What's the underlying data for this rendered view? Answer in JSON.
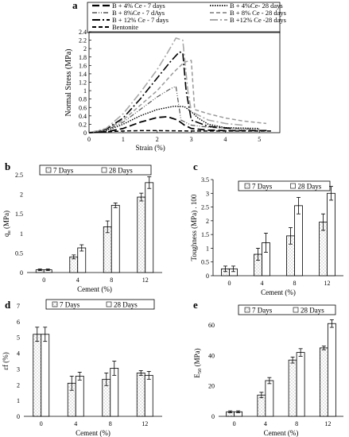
{
  "chart_data": [
    {
      "panel": "a",
      "type": "line",
      "xlabel": "Strain (%)",
      "ylabel": "Normal Stress (MPa)",
      "xlim": [
        0,
        5.6
      ],
      "ylim": [
        0,
        2.4
      ],
      "xticks": [
        0,
        1,
        2,
        3,
        4,
        5
      ],
      "yticks": [
        0,
        0.2,
        0.4,
        0.6,
        0.8,
        1.0,
        1.2,
        1.4,
        1.6,
        1.8,
        2.0,
        2.2,
        2.4
      ],
      "ytick_labels": [
        "0",
        "0.2",
        "0.4",
        "0.6",
        "0.8",
        "1",
        "1.2",
        "1.4",
        "1.6",
        "1.8",
        "2",
        "2.2",
        "2.4"
      ],
      "grid": false,
      "legend_position": "top",
      "series": [
        {
          "name": "B + 4% Ce - 7 days",
          "x": [
            0,
            0.5,
            1.0,
            1.5,
            2.0,
            2.3,
            2.6,
            2.8,
            3.0,
            3.5,
            4.0,
            5.3
          ],
          "y": [
            0,
            0.02,
            0.1,
            0.25,
            0.36,
            0.38,
            0.3,
            0.18,
            0.1,
            0.06,
            0.05,
            0.05
          ]
        },
        {
          "name": "B + 4%Ce- 28 days",
          "x": [
            0,
            0.5,
            1.0,
            1.5,
            2.0,
            2.5,
            2.8,
            3.0,
            3.2,
            3.5,
            4.0,
            5.0
          ],
          "y": [
            0,
            0.05,
            0.2,
            0.4,
            0.55,
            0.63,
            0.62,
            0.5,
            0.35,
            0.2,
            0.12,
            0.1
          ]
        },
        {
          "name": "B + 8%Ce - 7 dAys",
          "x": [
            0,
            0.5,
            1.0,
            1.5,
            2.0,
            2.4,
            2.55,
            2.7,
            3.0,
            3.5,
            4.0,
            5.0
          ],
          "y": [
            0,
            0.06,
            0.25,
            0.55,
            0.85,
            1.05,
            1.1,
            0.3,
            0.18,
            0.13,
            0.1,
            0.08
          ]
        },
        {
          "name": "B + 8% Ce - 28 days",
          "x": [
            0,
            0.5,
            1.0,
            1.5,
            2.0,
            2.5,
            2.8,
            3.0,
            3.1,
            3.5,
            4.0,
            4.5,
            5.2
          ],
          "y": [
            0,
            0.08,
            0.3,
            0.65,
            1.0,
            1.45,
            1.68,
            1.72,
            0.55,
            0.45,
            0.35,
            0.28,
            0.22
          ]
        },
        {
          "name": "B + 12% Ce - 7 days",
          "x": [
            0,
            0.5,
            1.0,
            1.5,
            2.0,
            2.4,
            2.65,
            2.75,
            2.85,
            3.0,
            3.5,
            4.2
          ],
          "y": [
            0,
            0.08,
            0.35,
            0.8,
            1.3,
            1.7,
            1.92,
            1.9,
            1.0,
            0.3,
            0.15,
            0.1
          ]
        },
        {
          "name": "B +12% Ce -28 days",
          "x": [
            0,
            0.5,
            1.0,
            1.5,
            2.0,
            2.3,
            2.55,
            2.75,
            2.9,
            3.0,
            3.5,
            4.0,
            4.5
          ],
          "y": [
            0,
            0.1,
            0.45,
            0.95,
            1.5,
            1.9,
            2.25,
            2.2,
            1.0,
            0.5,
            0.3,
            0.22,
            0.18
          ]
        },
        {
          "name": "Bentonite",
          "x": [
            0,
            0.5,
            1.0,
            1.5,
            2.0,
            3.0,
            4.0,
            5.4
          ],
          "y": [
            0,
            0.02,
            0.04,
            0.05,
            0.05,
            0.04,
            0.04,
            0.04
          ]
        }
      ]
    },
    {
      "panel": "b",
      "type": "bar",
      "categories": [
        "0",
        "4",
        "8",
        "12"
      ],
      "xlabel": "Cement (%)",
      "ylabel": "q",
      "ylabel_sub": "u",
      "ylabel_unit": " (MPa)",
      "ylim": [
        0,
        2.5
      ],
      "yticks": [
        0,
        0.5,
        1,
        1.5,
        2,
        2.5
      ],
      "ytick_labels": [
        "0",
        "0.5",
        "1",
        "1.5",
        "2",
        "2.5"
      ],
      "legend_position": "top",
      "series": [
        {
          "name": "7 Days",
          "values": [
            0.07,
            0.4,
            1.17,
            1.93
          ],
          "errors": [
            0.02,
            0.05,
            0.15,
            0.1
          ]
        },
        {
          "name": "28 Days",
          "values": [
            0.07,
            0.63,
            1.72,
            2.3
          ],
          "errors": [
            0.02,
            0.08,
            0.06,
            0.15
          ]
        }
      ]
    },
    {
      "panel": "c",
      "type": "bar",
      "categories": [
        "0",
        "4",
        "8",
        "12"
      ],
      "xlabel": "Cement (%)",
      "ylabel": "Toughness (MPa) . 100",
      "ylim": [
        0,
        3.5
      ],
      "yticks": [
        0,
        0.5,
        1,
        1.5,
        2,
        2.5,
        3,
        3.5
      ],
      "ytick_labels": [
        "0",
        "0.5",
        "1",
        "1.5",
        "2",
        "2.5",
        "3",
        "3.5"
      ],
      "legend_position": "top",
      "series": [
        {
          "name": "7 Days",
          "values": [
            0.25,
            0.78,
            1.45,
            1.95
          ],
          "errors": [
            0.1,
            0.22,
            0.3,
            0.3
          ]
        },
        {
          "name": "28 Days",
          "values": [
            0.25,
            1.2,
            2.55,
            3.0
          ],
          "errors": [
            0.1,
            0.35,
            0.3,
            0.25
          ]
        }
      ]
    },
    {
      "panel": "d",
      "type": "bar",
      "categories": [
        "0",
        "4",
        "8",
        "12"
      ],
      "xlabel": "Cement (%)",
      "ylabel": "εf (%)",
      "ylim": [
        0,
        7
      ],
      "yticks": [
        0,
        1,
        2,
        3,
        4,
        5,
        6,
        7
      ],
      "ytick_labels": [
        "0",
        "1",
        "2",
        "3",
        "4",
        "5",
        "6",
        "7"
      ],
      "legend_position": "top",
      "series": [
        {
          "name": "7 Days",
          "values": [
            5.2,
            2.1,
            2.35,
            2.75
          ],
          "errors": [
            0.45,
            0.45,
            0.4,
            0.15
          ]
        },
        {
          "name": "28 Days",
          "values": [
            5.2,
            2.55,
            3.05,
            2.6
          ],
          "errors": [
            0.45,
            0.25,
            0.45,
            0.25
          ]
        }
      ]
    },
    {
      "panel": "e",
      "type": "bar",
      "categories": [
        "0",
        "4",
        "8",
        "12"
      ],
      "xlabel": "Cement (%)",
      "ylabel": "E",
      "ylabel_sub": "50",
      "ylabel_unit": " (MPa)",
      "ylim": [
        0,
        70
      ],
      "yticks": [
        0,
        20,
        40,
        60
      ],
      "ytick_labels": [
        "0",
        "20",
        "40",
        "60"
      ],
      "legend_position": "top",
      "series": [
        {
          "name": "7 Days",
          "values": [
            3,
            14,
            37,
            45
          ],
          "errors": [
            0.6,
            1.8,
            2,
            1.2
          ]
        },
        {
          "name": "28 Days",
          "values": [
            3,
            23.5,
            42,
            61
          ],
          "errors": [
            0.6,
            2,
            2.5,
            2.5
          ]
        }
      ]
    }
  ]
}
